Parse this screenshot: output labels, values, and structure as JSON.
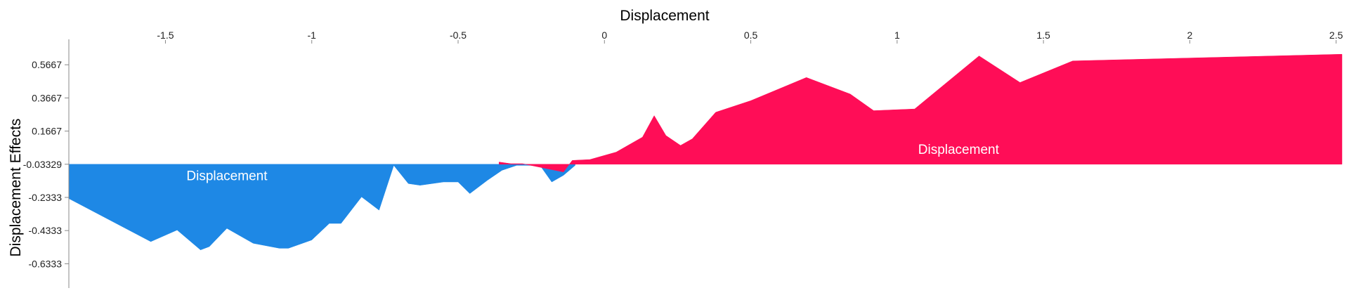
{
  "chart_data": {
    "type": "area",
    "title": "Displacement",
    "ylabel": "Displacement Effects",
    "xlim": [
      -1.83,
      2.52
    ],
    "ylim": [
      -0.78,
      0.72
    ],
    "x_ticks": [
      -1.5,
      -1,
      -0.5,
      0,
      0.5,
      1,
      1.5,
      2,
      2.5
    ],
    "x_tick_labels": [
      "-1.5",
      "-1",
      "-0.5",
      "0",
      "0.5",
      "1",
      "1.5",
      "2",
      "2.5"
    ],
    "y_ticks": [
      0.5667,
      0.3667,
      0.1667,
      -0.03329,
      -0.2333,
      -0.4333,
      -0.6333
    ],
    "y_tick_labels": [
      "0.5667",
      "0.3667",
      "0.1667",
      "-0.03329",
      "-0.2333",
      "-0.4333",
      "-0.6333"
    ],
    "baseline": -0.03329,
    "series": [
      {
        "label": "Displacement",
        "color": "#1e88e5",
        "points": [
          [
            -1.83,
            -0.24
          ],
          [
            -1.55,
            -0.5
          ],
          [
            -1.46,
            -0.43
          ],
          [
            -1.38,
            -0.55
          ],
          [
            -1.35,
            -0.53
          ],
          [
            -1.29,
            -0.42
          ],
          [
            -1.2,
            -0.51
          ],
          [
            -1.11,
            -0.54
          ],
          [
            -1.08,
            -0.54
          ],
          [
            -1.0,
            -0.49
          ],
          [
            -0.94,
            -0.39
          ],
          [
            -0.9,
            -0.39
          ],
          [
            -0.83,
            -0.23
          ],
          [
            -0.77,
            -0.31
          ],
          [
            -0.72,
            -0.04
          ],
          [
            -0.67,
            -0.15
          ],
          [
            -0.63,
            -0.16
          ],
          [
            -0.55,
            -0.14
          ],
          [
            -0.5,
            -0.14
          ],
          [
            -0.46,
            -0.21
          ],
          [
            -0.4,
            -0.13
          ],
          [
            -0.35,
            -0.07
          ],
          [
            -0.3,
            -0.04
          ],
          [
            -0.22,
            -0.04
          ],
          [
            -0.18,
            -0.14
          ],
          [
            -0.14,
            -0.1
          ],
          [
            -0.1,
            -0.04
          ]
        ]
      },
      {
        "label": "Displacement",
        "color": "#ff0d57",
        "points": [
          [
            -0.36,
            -0.02
          ],
          [
            -0.32,
            -0.03
          ],
          [
            -0.28,
            -0.03
          ],
          [
            -0.14,
            -0.08
          ],
          [
            -0.11,
            -0.01
          ],
          [
            -0.05,
            -0.005
          ],
          [
            0.04,
            0.04
          ],
          [
            0.13,
            0.13
          ],
          [
            0.17,
            0.26
          ],
          [
            0.21,
            0.14
          ],
          [
            0.26,
            0.08
          ],
          [
            0.3,
            0.12
          ],
          [
            0.38,
            0.28
          ],
          [
            0.5,
            0.35
          ],
          [
            0.69,
            0.49
          ],
          [
            0.84,
            0.39
          ],
          [
            0.92,
            0.29
          ],
          [
            1.06,
            0.3
          ],
          [
            1.28,
            0.62
          ],
          [
            1.42,
            0.46
          ],
          [
            1.6,
            0.59
          ],
          [
            2.52,
            0.63
          ]
        ]
      }
    ],
    "area_labels": [
      {
        "text": "Displacement",
        "x": -1.29,
        "y": -0.13,
        "color": "#ffffff"
      },
      {
        "text": "Displacement",
        "x": 1.21,
        "y": 0.03,
        "color": "#ffffff"
      }
    ]
  }
}
